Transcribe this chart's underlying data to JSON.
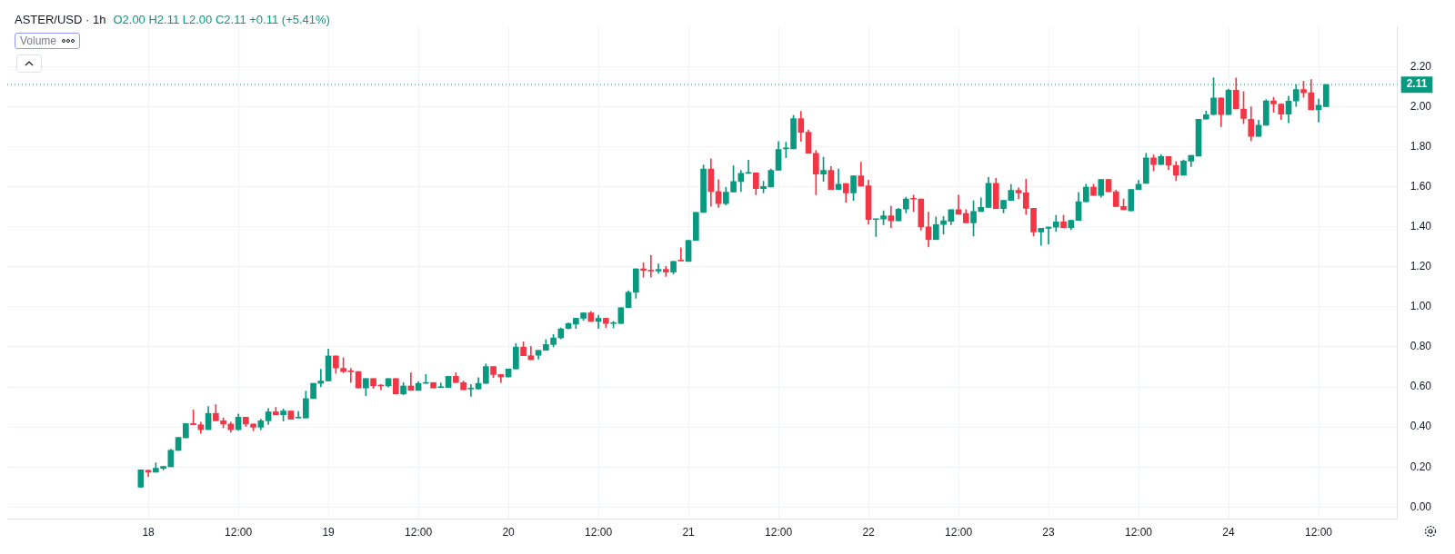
{
  "chart_data": {
    "type": "candlestick",
    "title": "ASTER/USD · 1h",
    "annotations": [
      "O2.00 H2.11 L2.00 C2.11 +0.11 (+5.41%)",
      "Volume"
    ],
    "x": [
      "--09-17T23:00",
      "--09-18T00:00",
      "--09-18T01:00",
      "--09-18T02:00",
      "--09-18T03:00",
      "--09-18T04:00",
      "--09-18T05:00",
      "--09-18T06:00",
      "--09-18T07:00",
      "--09-18T08:00",
      "--09-18T09:00",
      "--09-18T10:00",
      "--09-18T11:00",
      "--09-18T12:00",
      "--09-18T13:00",
      "--09-18T14:00",
      "--09-18T15:00",
      "--09-18T16:00",
      "--09-18T17:00",
      "--09-18T18:00",
      "--09-18T19:00",
      "--09-18T20:00",
      "--09-18T21:00",
      "--09-18T22:00",
      "--09-18T23:00",
      "--09-19T00:00",
      "--09-19T01:00",
      "--09-19T02:00",
      "--09-19T03:00",
      "--09-19T04:00",
      "--09-19T05:00",
      "--09-19T06:00",
      "--09-19T07:00",
      "--09-19T08:00",
      "--09-19T09:00",
      "--09-19T10:00",
      "--09-19T11:00",
      "--09-19T12:00",
      "--09-19T13:00",
      "--09-19T14:00",
      "--09-19T15:00",
      "--09-19T16:00",
      "--09-19T17:00",
      "--09-19T18:00",
      "--09-19T19:00",
      "--09-19T20:00",
      "--09-19T21:00",
      "--09-19T22:00",
      "--09-19T23:00",
      "--09-20T00:00",
      "--09-20T01:00",
      "--09-20T02:00",
      "--09-20T03:00",
      "--09-20T04:00",
      "--09-20T05:00",
      "--09-20T06:00",
      "--09-20T07:00",
      "--09-20T08:00",
      "--09-20T09:00",
      "--09-20T10:00",
      "--09-20T11:00",
      "--09-20T12:00",
      "--09-20T13:00",
      "--09-20T14:00",
      "--09-20T15:00",
      "--09-20T16:00",
      "--09-20T17:00",
      "--09-20T18:00",
      "--09-20T19:00",
      "--09-20T20:00",
      "--09-20T21:00",
      "--09-20T22:00",
      "--09-20T23:00",
      "--09-21T00:00",
      "--09-21T01:00",
      "--09-21T02:00",
      "--09-21T03:00",
      "--09-21T04:00",
      "--09-21T05:00",
      "--09-21T06:00",
      "--09-21T07:00",
      "--09-21T08:00",
      "--09-21T09:00",
      "--09-21T10:00",
      "--09-21T11:00",
      "--09-21T12:00",
      "--09-21T13:00",
      "--09-21T14:00",
      "--09-21T15:00",
      "--09-21T16:00",
      "--09-21T17:00",
      "--09-21T18:00",
      "--09-21T19:00",
      "--09-21T20:00",
      "--09-21T21:00",
      "--09-21T22:00",
      "--09-21T23:00",
      "--09-22T00:00",
      "--09-22T01:00",
      "--09-22T02:00",
      "--09-22T03:00",
      "--09-22T04:00",
      "--09-22T05:00",
      "--09-22T06:00",
      "--09-22T07:00",
      "--09-22T08:00",
      "--09-22T09:00",
      "--09-22T10:00",
      "--09-22T11:00",
      "--09-22T12:00",
      "--09-22T13:00",
      "--09-22T14:00",
      "--09-22T15:00",
      "--09-22T16:00",
      "--09-22T17:00",
      "--09-22T18:00",
      "--09-22T19:00",
      "--09-22T20:00",
      "--09-22T21:00",
      "--09-22T22:00",
      "--09-22T23:00",
      "--09-23T00:00",
      "--09-23T01:00",
      "--09-23T02:00",
      "--09-23T03:00",
      "--09-23T04:00",
      "--09-23T05:00",
      "--09-23T06:00",
      "--09-23T07:00",
      "--09-23T08:00",
      "--09-23T09:00",
      "--09-23T10:00",
      "--09-23T11:00",
      "--09-23T12:00",
      "--09-23T13:00",
      "--09-23T14:00",
      "--09-23T15:00",
      "--09-23T16:00",
      "--09-23T17:00",
      "--09-23T18:00",
      "--09-23T19:00",
      "--09-23T20:00",
      "--09-23T21:00",
      "--09-23T22:00",
      "--09-23T23:00",
      "--09-24T00:00",
      "--09-24T01:00",
      "--09-24T02:00",
      "--09-24T03:00",
      "--09-24T04:00",
      "--09-24T05:00",
      "--09-24T06:00",
      "--09-24T07:00",
      "--09-24T08:00",
      "--09-24T09:00",
      "--09-24T10:00",
      "--09-24T11:00",
      "--09-24T12:00",
      "--09-24T13:00"
    ],
    "xlim": [
      "--09-17T05:12",
      "--09-24T22:30"
    ],
    "xticks": [
      {
        "value": "--09-18T00:00",
        "label": "18"
      },
      {
        "value": "--09-18T12:00",
        "label": "12:00"
      },
      {
        "value": "--09-19T00:00",
        "label": "19"
      },
      {
        "value": "--09-19T12:00",
        "label": "12:00"
      },
      {
        "value": "--09-20T00:00",
        "label": "20"
      },
      {
        "value": "--09-20T12:00",
        "label": "12:00"
      },
      {
        "value": "--09-21T00:00",
        "label": "21"
      },
      {
        "value": "--09-21T12:00",
        "label": "12:00"
      },
      {
        "value": "--09-22T00:00",
        "label": "22"
      },
      {
        "value": "--09-22T12:00",
        "label": "12:00"
      },
      {
        "value": "--09-23T00:00",
        "label": "23"
      },
      {
        "value": "--09-23T12:00",
        "label": "12:00"
      },
      {
        "value": "--09-24T00:00",
        "label": "24"
      },
      {
        "value": "--09-24T12:00",
        "label": "12:00"
      }
    ],
    "ohlc": [
      [
        0.1,
        0.186,
        0.1,
        0.186
      ],
      [
        0.184,
        0.186,
        0.153,
        0.174
      ],
      [
        0.174,
        0.221,
        0.174,
        0.194
      ],
      [
        0.194,
        0.203,
        0.186,
        0.203
      ],
      [
        0.202,
        0.289,
        0.202,
        0.284
      ],
      [
        0.283,
        0.348,
        0.283,
        0.348
      ],
      [
        0.346,
        0.417,
        0.346,
        0.417
      ],
      [
        0.417,
        0.486,
        0.411,
        0.411
      ],
      [
        0.411,
        0.424,
        0.368,
        0.387
      ],
      [
        0.387,
        0.502,
        0.387,
        0.468
      ],
      [
        0.468,
        0.512,
        0.431,
        0.431
      ],
      [
        0.431,
        0.446,
        0.396,
        0.415
      ],
      [
        0.415,
        0.424,
        0.374,
        0.387
      ],
      [
        0.387,
        0.465,
        0.383,
        0.449
      ],
      [
        0.449,
        0.449,
        0.403,
        0.415
      ],
      [
        0.415,
        0.415,
        0.381,
        0.399
      ],
      [
        0.399,
        0.439,
        0.386,
        0.431
      ],
      [
        0.431,
        0.492,
        0.412,
        0.476
      ],
      [
        0.476,
        0.498,
        0.461,
        0.461
      ],
      [
        0.461,
        0.49,
        0.43,
        0.48
      ],
      [
        0.48,
        0.48,
        0.439,
        0.439
      ],
      [
        0.445,
        0.477,
        0.445,
        0.447
      ],
      [
        0.445,
        0.579,
        0.445,
        0.542
      ],
      [
        0.542,
        0.618,
        0.542,
        0.618
      ],
      [
        0.618,
        0.689,
        0.601,
        0.63
      ],
      [
        0.63,
        0.789,
        0.63,
        0.755
      ],
      [
        0.755,
        0.755,
        0.668,
        0.695
      ],
      [
        0.693,
        0.746,
        0.671,
        0.677
      ],
      [
        0.677,
        0.693,
        0.622,
        0.676
      ],
      [
        0.677,
        0.677,
        0.595,
        0.595
      ],
      [
        0.595,
        0.642,
        0.556,
        0.642
      ],
      [
        0.642,
        0.642,
        0.593,
        0.606
      ],
      [
        0.608,
        0.612,
        0.586,
        0.605
      ],
      [
        0.605,
        0.642,
        0.6,
        0.642
      ],
      [
        0.642,
        0.642,
        0.565,
        0.565
      ],
      [
        0.565,
        0.622,
        0.561,
        0.605
      ],
      [
        0.605,
        0.671,
        0.583,
        0.583
      ],
      [
        0.583,
        0.627,
        0.583,
        0.618
      ],
      [
        0.618,
        0.662,
        0.618,
        0.622
      ],
      [
        0.622,
        0.622,
        0.595,
        0.595
      ],
      [
        0.597,
        0.62,
        0.597,
        0.6
      ],
      [
        0.597,
        0.653,
        0.597,
        0.653
      ],
      [
        0.653,
        0.671,
        0.622,
        0.622
      ],
      [
        0.622,
        0.63,
        0.586,
        0.586
      ],
      [
        0.59,
        0.612,
        0.553,
        0.593
      ],
      [
        0.59,
        0.647,
        0.59,
        0.618
      ],
      [
        0.618,
        0.715,
        0.618,
        0.702
      ],
      [
        0.702,
        0.702,
        0.647,
        0.662
      ],
      [
        0.662,
        0.662,
        0.622,
        0.65
      ],
      [
        0.65,
        0.69,
        0.65,
        0.69
      ],
      [
        0.69,
        0.817,
        0.69,
        0.799
      ],
      [
        0.799,
        0.826,
        0.756,
        0.756
      ],
      [
        0.756,
        0.803,
        0.736,
        0.736
      ],
      [
        0.758,
        0.783,
        0.739,
        0.783
      ],
      [
        0.783,
        0.837,
        0.783,
        0.812
      ],
      [
        0.812,
        0.862,
        0.8,
        0.845
      ],
      [
        0.845,
        0.895,
        0.84,
        0.89
      ],
      [
        0.892,
        0.92,
        0.89,
        0.917
      ],
      [
        0.914,
        0.943,
        0.892,
        0.943
      ],
      [
        0.943,
        0.97,
        0.933,
        0.97
      ],
      [
        0.97,
        0.977,
        0.927,
        0.927
      ],
      [
        0.927,
        0.958,
        0.892,
        0.943
      ],
      [
        0.943,
        0.943,
        0.897,
        0.917
      ],
      [
        0.917,
        0.927,
        0.895,
        0.918
      ],
      [
        0.917,
        0.996,
        0.917,
        0.996
      ],
      [
        0.996,
        1.081,
        0.996,
        1.073
      ],
      [
        1.073,
        1.19,
        1.043,
        1.19
      ],
      [
        1.19,
        1.22,
        1.148,
        1.182
      ],
      [
        1.183,
        1.257,
        1.148,
        1.179
      ],
      [
        1.179,
        1.215,
        1.168,
        1.187
      ],
      [
        1.187,
        1.202,
        1.152,
        1.174
      ],
      [
        1.174,
        1.227,
        1.164,
        1.227
      ],
      [
        1.231,
        1.295,
        1.229,
        1.229
      ],
      [
        1.227,
        1.332,
        1.227,
        1.332
      ],
      [
        1.332,
        1.472,
        1.332,
        1.472
      ],
      [
        1.472,
        1.709,
        1.472,
        1.689
      ],
      [
        1.689,
        1.74,
        1.502,
        1.576
      ],
      [
        1.576,
        1.635,
        1.496,
        1.516
      ],
      [
        1.516,
        1.597,
        1.509,
        1.573
      ],
      [
        1.573,
        1.704,
        1.573,
        1.626
      ],
      [
        1.626,
        1.682,
        1.576,
        1.667
      ],
      [
        1.667,
        1.733,
        1.667,
        1.67
      ],
      [
        1.669,
        1.669,
        1.56,
        1.591
      ],
      [
        1.591,
        1.627,
        1.569,
        1.601
      ],
      [
        1.598,
        1.689,
        1.598,
        1.682
      ],
      [
        1.682,
        1.826,
        1.682,
        1.786
      ],
      [
        1.789,
        1.822,
        1.745,
        1.791
      ],
      [
        1.789,
        1.956,
        1.789,
        1.94
      ],
      [
        1.94,
        1.976,
        1.826,
        1.872
      ],
      [
        1.872,
        1.884,
        1.767,
        1.767
      ],
      [
        1.767,
        1.782,
        1.56,
        1.663
      ],
      [
        1.663,
        1.748,
        1.627,
        1.682
      ],
      [
        1.682,
        1.701,
        1.586,
        1.586
      ],
      [
        1.586,
        1.689,
        1.586,
        1.613
      ],
      [
        1.616,
        1.616,
        1.522,
        1.569
      ],
      [
        1.569,
        1.654,
        1.532,
        1.654
      ],
      [
        1.654,
        1.723,
        1.603,
        1.603
      ],
      [
        1.605,
        1.633,
        1.414,
        1.436
      ],
      [
        1.436,
        1.439,
        1.351,
        1.439
      ],
      [
        1.439,
        1.48,
        1.41,
        1.455
      ],
      [
        1.455,
        1.504,
        1.395,
        1.429
      ],
      [
        1.429,
        1.492,
        1.429,
        1.488
      ],
      [
        1.488,
        1.548,
        1.469,
        1.539
      ],
      [
        1.539,
        1.558,
        1.476,
        1.538
      ],
      [
        1.539,
        1.539,
        1.383,
        1.399
      ],
      [
        1.399,
        1.473,
        1.299,
        1.336
      ],
      [
        1.336,
        1.449,
        1.336,
        1.411
      ],
      [
        1.411,
        1.452,
        1.363,
        1.43
      ],
      [
        1.427,
        1.485,
        1.41,
        1.485
      ],
      [
        1.485,
        1.558,
        1.463,
        1.463
      ],
      [
        1.466,
        1.485,
        1.419,
        1.419
      ],
      [
        1.419,
        1.53,
        1.354,
        1.476
      ],
      [
        1.476,
        1.545,
        1.476,
        1.497
      ],
      [
        1.497,
        1.647,
        1.497,
        1.617
      ],
      [
        1.617,
        1.642,
        1.491,
        1.491
      ],
      [
        1.491,
        1.532,
        1.469,
        1.532
      ],
      [
        1.532,
        1.611,
        1.532,
        1.582
      ],
      [
        1.582,
        1.594,
        1.539,
        1.569
      ],
      [
        1.569,
        1.638,
        1.461,
        1.492
      ],
      [
        1.492,
        1.492,
        1.354,
        1.374
      ],
      [
        1.374,
        1.392,
        1.307,
        1.392
      ],
      [
        1.392,
        1.398,
        1.314,
        1.398
      ],
      [
        1.398,
        1.457,
        1.377,
        1.424
      ],
      [
        1.424,
        1.457,
        1.396,
        1.396
      ],
      [
        1.396,
        1.432,
        1.385,
        1.432
      ],
      [
        1.432,
        1.572,
        1.432,
        1.525
      ],
      [
        1.525,
        1.613,
        1.525,
        1.598
      ],
      [
        1.598,
        1.613,
        1.557,
        1.557
      ],
      [
        1.557,
        1.636,
        1.548,
        1.636
      ],
      [
        1.636,
        1.636,
        1.575,
        1.575
      ],
      [
        1.575,
        1.583,
        1.501,
        1.501
      ],
      [
        1.501,
        1.539,
        1.485,
        1.485
      ],
      [
        1.48,
        1.586,
        1.48,
        1.586
      ],
      [
        1.586,
        1.632,
        1.586,
        1.613
      ],
      [
        1.617,
        1.767,
        1.617,
        1.744
      ],
      [
        1.744,
        1.759,
        1.679,
        1.711
      ],
      [
        1.711,
        1.76,
        1.711,
        1.751
      ],
      [
        1.751,
        1.751,
        1.686,
        1.707
      ],
      [
        1.707,
        1.726,
        1.63,
        1.657
      ],
      [
        1.657,
        1.734,
        1.657,
        1.728
      ],
      [
        1.728,
        1.756,
        1.701,
        1.756
      ],
      [
        1.753,
        1.937,
        1.753,
        1.937
      ],
      [
        1.937,
        1.978,
        1.937,
        1.96
      ],
      [
        1.96,
        2.144,
        1.96,
        2.043
      ],
      [
        2.043,
        2.043,
        1.9,
        1.96
      ],
      [
        1.96,
        2.088,
        1.96,
        2.082
      ],
      [
        2.082,
        2.143,
        1.988,
        1.988
      ],
      [
        1.988,
        2.075,
        1.915,
        1.941
      ],
      [
        1.937,
        1.999,
        1.829,
        1.851
      ],
      [
        1.851,
        1.932,
        1.851,
        1.907
      ],
      [
        1.907,
        2.035,
        1.907,
        2.029
      ],
      [
        2.029,
        2.047,
        1.971,
        2.013
      ],
      [
        2.013,
        2.013,
        1.935,
        1.963
      ],
      [
        1.963,
        2.053,
        1.919,
        2.028
      ],
      [
        2.028,
        2.11,
        2.001,
        2.085
      ],
      [
        2.085,
        2.127,
        2.046,
        2.069
      ],
      [
        2.069,
        2.135,
        1.984,
        1.984
      ],
      [
        1.984,
        2.038,
        1.923,
        2.007
      ],
      [
        2.0,
        2.11,
        2.0,
        2.11
      ]
    ],
    "colors": [
      "#089981",
      "#f23645",
      "#089981",
      "#089981",
      "#089981",
      "#089981",
      "#089981",
      "#f23645",
      "#f23645",
      "#089981",
      "#f23645",
      "#f23645",
      "#f23645",
      "#089981",
      "#f23645",
      "#f23645",
      "#089981",
      "#089981",
      "#f23645",
      "#089981",
      "#f23645",
      "#089981",
      "#089981",
      "#089981",
      "#089981",
      "#089981",
      "#f23645",
      "#f23645",
      "#f23645",
      "#f23645",
      "#089981",
      "#f23645",
      "#f23645",
      "#089981",
      "#f23645",
      "#089981",
      "#f23645",
      "#089981",
      "#089981",
      "#f23645",
      "#089981",
      "#089981",
      "#f23645",
      "#f23645",
      "#089981",
      "#089981",
      "#089981",
      "#f23645",
      "#f23645",
      "#089981",
      "#089981",
      "#f23645",
      "#f23645",
      "#089981",
      "#089981",
      "#089981",
      "#089981",
      "#089981",
      "#089981",
      "#089981",
      "#f23645",
      "#089981",
      "#f23645",
      "#089981",
      "#089981",
      "#089981",
      "#089981",
      "#f23645",
      "#f23645",
      "#089981",
      "#f23645",
      "#089981",
      "#f23645",
      "#089981",
      "#089981",
      "#089981",
      "#f23645",
      "#f23645",
      "#089981",
      "#089981",
      "#089981",
      "#089981",
      "#f23645",
      "#089981",
      "#089981",
      "#089981",
      "#089981",
      "#089981",
      "#f23645",
      "#f23645",
      "#f23645",
      "#089981",
      "#f23645",
      "#089981",
      "#f23645",
      "#089981",
      "#f23645",
      "#f23645",
      "#089981",
      "#089981",
      "#f23645",
      "#089981",
      "#089981",
      "#f23645",
      "#f23645",
      "#f23645",
      "#089981",
      "#089981",
      "#089981",
      "#f23645",
      "#f23645",
      "#089981",
      "#089981",
      "#089981",
      "#f23645",
      "#089981",
      "#089981",
      "#f23645",
      "#f23645",
      "#f23645",
      "#089981",
      "#089981",
      "#089981",
      "#f23645",
      "#089981",
      "#089981",
      "#089981",
      "#f23645",
      "#089981",
      "#f23645",
      "#f23645",
      "#f23645",
      "#089981",
      "#089981",
      "#089981",
      "#f23645",
      "#089981",
      "#f23645",
      "#f23645",
      "#089981",
      "#089981",
      "#089981",
      "#089981",
      "#089981",
      "#f23645",
      "#089981",
      "#f23645",
      "#f23645",
      "#f23645",
      "#089981",
      "#089981",
      "#f23645",
      "#f23645",
      "#089981",
      "#089981",
      "#f23645",
      "#f23645",
      "#089981",
      "#089981"
    ],
    "ylim": [
      -0.06,
      2.4
    ],
    "yticks": [
      {
        "value": 0,
        "label": "0.00"
      },
      {
        "value": 0.2,
        "label": "0.20"
      },
      {
        "value": 0.4,
        "label": "0.40"
      },
      {
        "value": 0.6,
        "label": "0.60"
      },
      {
        "value": 0.8,
        "label": "0.80"
      },
      {
        "value": 1,
        "label": "1.00"
      },
      {
        "value": 1.2,
        "label": "1.20"
      },
      {
        "value": 1.4,
        "label": "1.40"
      },
      {
        "value": 1.6,
        "label": "1.60"
      },
      {
        "value": 1.8,
        "label": "1.80"
      },
      {
        "value": 2,
        "label": "2.00"
      },
      {
        "value": 2.2,
        "label": "2.20"
      }
    ],
    "ref_lines": [
      {
        "axis": "y",
        "value": 2.11,
        "label": "2.11",
        "color": "#089981",
        "line_style": "dotted"
      }
    ],
    "grid": true,
    "legend": false
  }
}
